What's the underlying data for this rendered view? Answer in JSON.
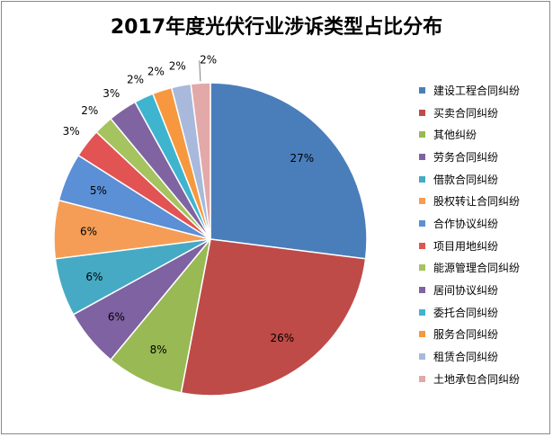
{
  "chart_data": {
    "type": "pie",
    "title": "2017年度光伏行业涉诉类型占比分布",
    "categories": [
      "建设工程合同纠纷",
      "买卖合同纠纷",
      "其他纠纷",
      "劳务合同纠纷",
      "借款合同纠纷",
      "股权转让合同纠纷",
      "合作协议纠纷",
      "项目用地纠纷",
      "能源管理合同纠纷",
      "居间协议纠纷",
      "委托合同纠纷",
      "服务合同纠纷",
      "租赁合同纠纷",
      "土地承包合同纠纷"
    ],
    "values": [
      27,
      26,
      8,
      6,
      6,
      6,
      5,
      3,
      2,
      3,
      2,
      2,
      2,
      2
    ],
    "labels": [
      "27%",
      "26%",
      "8%",
      "6%",
      "6%",
      "6%",
      "5%",
      "3%",
      "2%",
      "3%",
      "2%",
      "2%",
      "2%",
      "2%"
    ],
    "colors": [
      "#4a7ebb",
      "#be4b48",
      "#98b954",
      "#7e62a1",
      "#46aac5",
      "#f59d56",
      "#5b8fd6",
      "#e15453",
      "#a5c35f",
      "#8064a2",
      "#3fb4cf",
      "#f7983e",
      "#a8b9dc",
      "#e2a9a8"
    ],
    "legend_position": "right",
    "start_angle": "12 o'clock, clockwise"
  }
}
